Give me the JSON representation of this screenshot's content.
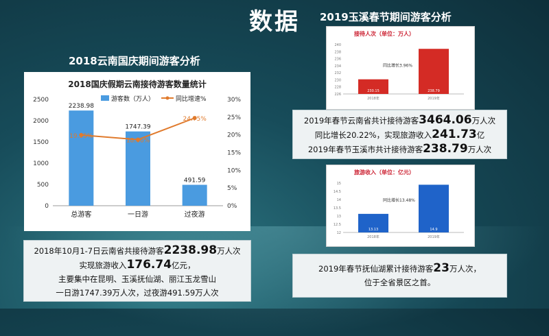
{
  "header": {
    "title": "数据"
  },
  "left": {
    "section_title": "2018云南国庆期间游客分析",
    "panel": {
      "l1a": "2018年10月1-7日云南省共接待游客",
      "l1b": "2238.98",
      "l1c": "万人次",
      "l2a": "实现旅游收入",
      "l2b": "176.74",
      "l2c": "亿元，",
      "l3": "主要集中在昆明、玉溪抚仙湖、丽江玉龙雪山",
      "l4": "一日游1747.39万人次，过夜游491.59万人次"
    }
  },
  "right": {
    "section_title": "2019玉溪春节期间游客分析",
    "panel1": {
      "l1a": "2019年春节云南省共计接待游客",
      "l1b": "3464.06",
      "l1c": "万人次",
      "l2a": "同比增长20.22%，实现旅游收入",
      "l2b": "241.73",
      "l2c": "亿",
      "l3a": "2019年春节玉溪市共计接待游客",
      "l3b": "238.79",
      "l3c": "万人次"
    },
    "panel2": {
      "l1a": "2019年春节抚仙湖累计接待游客",
      "l1b": "23",
      "l1c": "万人次，",
      "l2": "位于全省景区之首。"
    }
  },
  "colors": {
    "bar": "#4a9be0",
    "line": "#e07a2c",
    "red": "#d42b25",
    "blue": "#1f63c9"
  },
  "chart_data": [
    {
      "type": "bar",
      "title": "2018国庆假期云南接待游客数量统计",
      "categories": [
        "总游客",
        "一日游",
        "过夜游"
      ],
      "series": [
        {
          "name": "游客数（万人）",
          "values": [
            2238.98,
            1747.39,
            491.59
          ],
          "axis": "left"
        },
        {
          "name": "同比增速%",
          "values": [
            19.95,
            18.66,
            24.75
          ],
          "axis": "right",
          "render": "line"
        }
      ],
      "data_labels": [
        "2238.98",
        "1747.39",
        "491.59"
      ],
      "line_labels": [
        "19.95%",
        "18.66%",
        "24.75%"
      ],
      "ylim": [
        0,
        2500
      ],
      "yticks": [
        "0",
        "500",
        "1000",
        "1500",
        "2000",
        "2500"
      ],
      "y2lim": [
        0,
        30
      ],
      "y2ticks": [
        "0%",
        "5%",
        "10%",
        "15%",
        "20%",
        "25%",
        "30%"
      ]
    },
    {
      "type": "bar",
      "title": "接待人次（单位：万人）",
      "categories": [
        "2018年",
        "2019年"
      ],
      "values": [
        230.15,
        238.79
      ],
      "data_labels": [
        "230.15",
        "238.79"
      ],
      "annotation": "同比增长3.96%",
      "ylim": [
        226,
        240
      ],
      "yticks": [
        "226",
        "228",
        "230",
        "232",
        "234",
        "236",
        "238",
        "240"
      ]
    },
    {
      "type": "bar",
      "title": "旅游收入（单位：亿元）",
      "categories": [
        "2018年",
        "2019年"
      ],
      "values": [
        13.13,
        14.9
      ],
      "data_labels": [
        "13.13",
        "14.9"
      ],
      "annotation": "同比增长13.48%",
      "ylim": [
        12,
        15
      ],
      "yticks": [
        "12",
        "12.5",
        "13",
        "13.5",
        "14",
        "14.5",
        "15"
      ]
    }
  ]
}
